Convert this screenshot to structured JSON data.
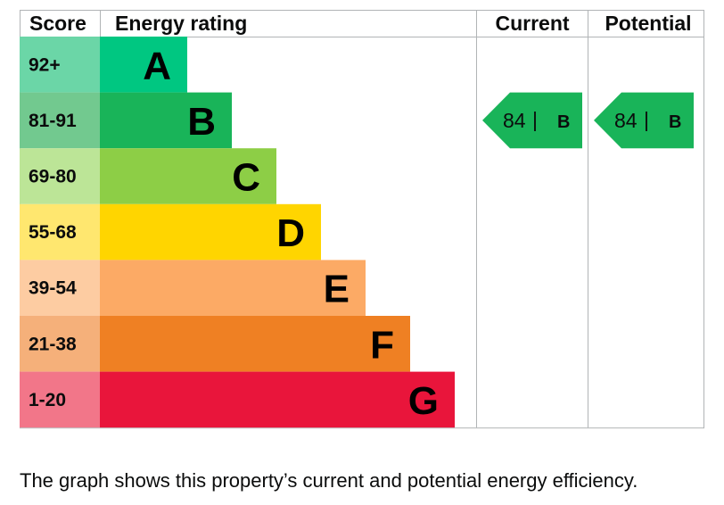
{
  "chart_data": {
    "type": "table",
    "columns": {
      "score": "Score",
      "rating": "Energy rating",
      "current": "Current",
      "potential": "Potential"
    },
    "bands": [
      {
        "score": "92+",
        "letter": "A",
        "bar_color": "#00c781",
        "score_color": "#6bd6a7"
      },
      {
        "score": "81-91",
        "letter": "B",
        "bar_color": "#19b459",
        "score_color": "#72c98f"
      },
      {
        "score": "69-80",
        "letter": "C",
        "bar_color": "#8dce46",
        "score_color": "#bce597"
      },
      {
        "score": "55-68",
        "letter": "D",
        "bar_color": "#ffd500",
        "score_color": "#ffe76f"
      },
      {
        "score": "39-54",
        "letter": "E",
        "bar_color": "#fcaa65",
        "score_color": "#fdcca2"
      },
      {
        "score": "21-38",
        "letter": "F",
        "bar_color": "#ef8023",
        "score_color": "#f5b07a"
      },
      {
        "score": "1-20",
        "letter": "G",
        "bar_color": "#e9153b",
        "score_color": "#f27689"
      }
    ],
    "current": {
      "value": 84,
      "band": "B",
      "separator": "|",
      "color": "#19b459"
    },
    "potential": {
      "value": 84,
      "band": "B",
      "separator": "|",
      "color": "#19b459"
    }
  },
  "caption": "The graph shows this property’s current and potential energy efficiency."
}
